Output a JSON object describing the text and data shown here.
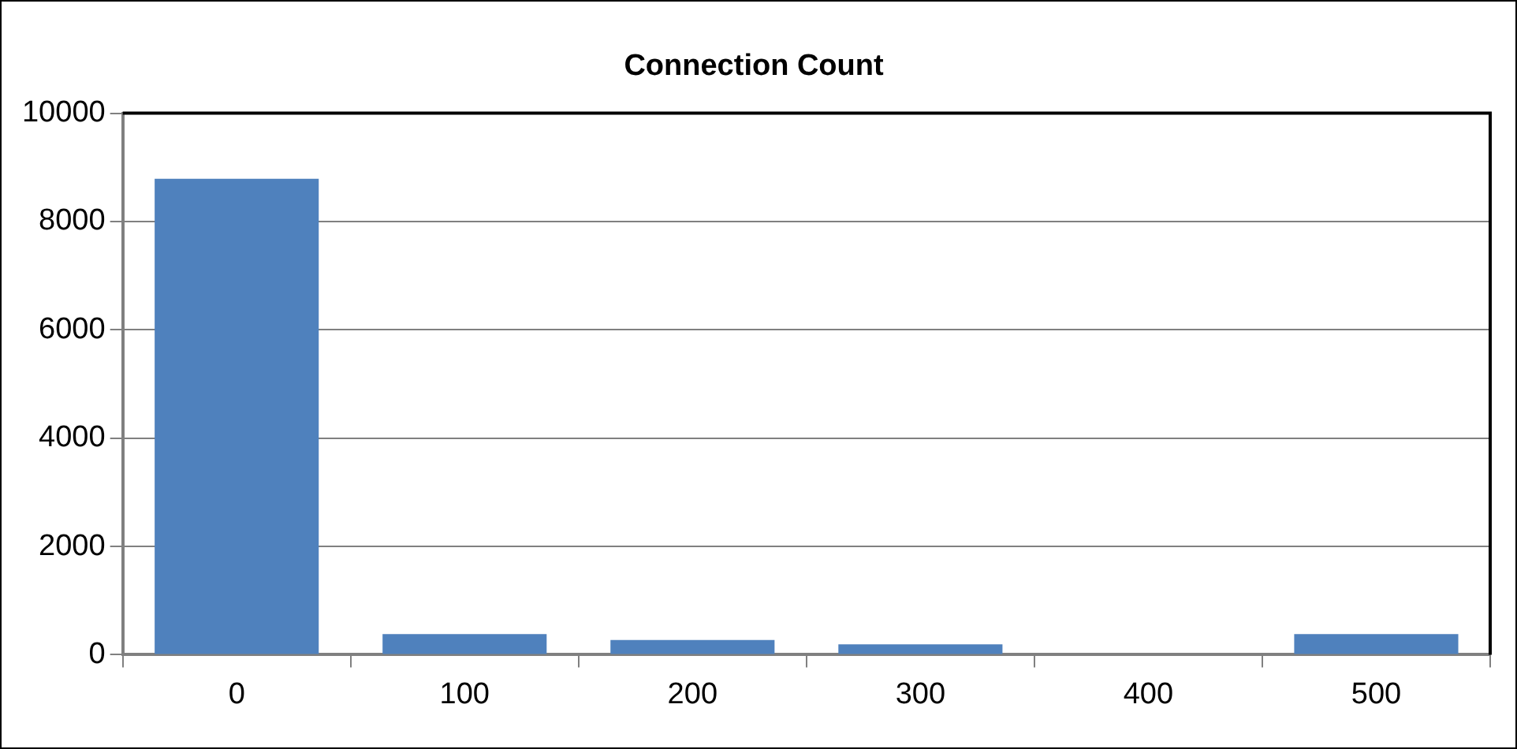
{
  "chart_data": {
    "type": "bar",
    "title": "Connection Count",
    "categories": [
      "0",
      "100",
      "200",
      "300",
      "400",
      "500"
    ],
    "values": [
      8790,
      380,
      270,
      190,
      0,
      380
    ],
    "color": "#4f81bd",
    "ylim": [
      0,
      10000
    ],
    "yticks": [
      0,
      2000,
      4000,
      6000,
      8000,
      10000
    ],
    "grid": "y",
    "legend": false
  }
}
